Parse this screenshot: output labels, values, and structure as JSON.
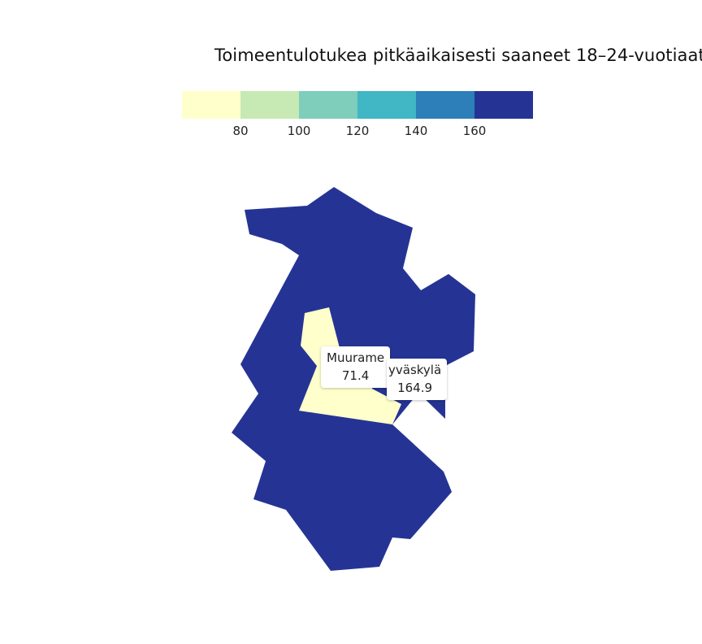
{
  "title": "Toimeentulotukea pitkäaikaisesti saaneet 18–24-vuotiaat",
  "legend": {
    "colors": [
      "#ffffcc",
      "#c7e9b4",
      "#7fcdbb",
      "#41b6c4",
      "#2c7fb8",
      "#253494"
    ],
    "ticks": [
      "80",
      "100",
      "120",
      "140",
      "160"
    ]
  },
  "regions": [
    {
      "name": "Jyväskylä",
      "label": "yväskylä",
      "value": "164.9",
      "color": "#253494"
    },
    {
      "name": "Muurame",
      "label": "Muurame",
      "value": "71.4",
      "color": "#ffffcc"
    }
  ]
}
